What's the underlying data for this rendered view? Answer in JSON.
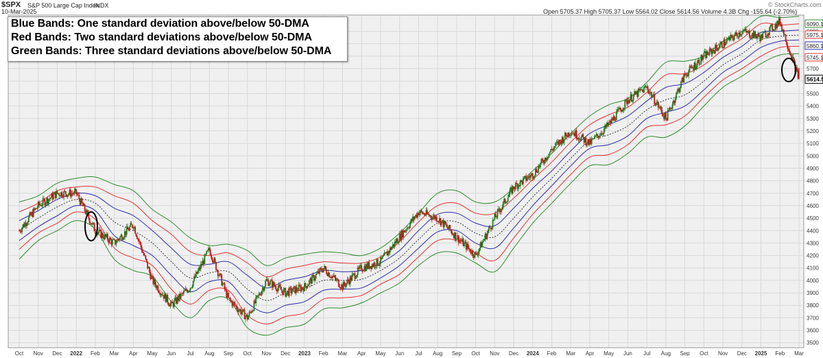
{
  "header": {
    "symbol": "$SPX",
    "name": "S&P 500 Large Cap Index",
    "exchange": "INDX",
    "date": "10-Mar-2025",
    "quote": "Open 5705.37  High 5705.37  Low 5564.02  Close 5614.56  Volume 4.3B  Chg -155.64 (-2.70%)",
    "watermark": "© StockCharts.com"
  },
  "legend": {
    "blue": "Blue Bands: One standard deviation above/below 50-DMA",
    "red": "Red Bands: Two standard deviations above/below 50-DMA",
    "green": "Green Bands: Three standard deviations above/below 50-DMA"
  },
  "price_tags": {
    "g_upper": "6090.12",
    "r_upper": "5975.12",
    "b_upper": "5860.13",
    "r_lower": "5745.13",
    "close": "5614.56"
  },
  "chart_data": {
    "type": "line",
    "title": "$SPX S&P 500 Large Cap Index INDX",
    "x_ticks": [
      "Oct",
      "Nov",
      "Dec",
      "2022",
      "Feb",
      "Mar",
      "Apr",
      "May",
      "Jun",
      "Jul",
      "Aug",
      "Sep",
      "Oct",
      "Nov",
      "Dec",
      "2023",
      "Feb",
      "Mar",
      "Apr",
      "May",
      "Jun",
      "Jul",
      "Aug",
      "Sep",
      "Oct",
      "Nov",
      "Dec",
      "2024",
      "Feb",
      "Mar",
      "Apr",
      "May",
      "Jun",
      "Jul",
      "Aug",
      "Sep",
      "Oct",
      "Nov",
      "Dec",
      "2025",
      "Feb",
      "Mar"
    ],
    "y_ticks": [
      3500,
      3600,
      3700,
      3800,
      3900,
      4000,
      4100,
      4200,
      4300,
      4400,
      4500,
      4600,
      4700,
      4800,
      4900,
      5000,
      5100,
      5200,
      5300,
      5400,
      5500,
      5600,
      5700,
      5800,
      5900,
      6000
    ],
    "ylim": [
      3460,
      6130
    ],
    "grid": true,
    "series": [
      {
        "name": "Price",
        "color": "#1a1a1a",
        "x": [
          "Oct 2021",
          "Nov 2021",
          "Dec 2021",
          "Jan 2022",
          "Feb 2022",
          "Mar 2022",
          "Apr 2022",
          "May 2022",
          "Jun 2022",
          "Jul 2022",
          "Aug 2022",
          "Sep 2022",
          "Oct 2022",
          "Nov 2022",
          "Dec 2022",
          "Jan 2023",
          "Feb 2023",
          "Mar 2023",
          "Apr 2023",
          "May 2023",
          "Jun 2023",
          "Jul 2023",
          "Aug 2023",
          "Sep 2023",
          "Oct 2023",
          "Nov 2023",
          "Dec 2023",
          "Jan 2024",
          "Feb 2024",
          "Mar 2024",
          "Apr 2024",
          "May 2024",
          "Jun 2024",
          "Jul 2024",
          "Aug 2024",
          "Sep 2024",
          "Oct 2024",
          "Nov 2024",
          "Dec 2024",
          "Jan 2025",
          "Feb 2025",
          "Mar 2025"
        ],
        "values": [
          4400,
          4600,
          4700,
          4700,
          4400,
          4300,
          4450,
          4000,
          3800,
          3950,
          4250,
          3850,
          3700,
          4000,
          3900,
          3950,
          4100,
          3950,
          4100,
          4150,
          4350,
          4550,
          4500,
          4350,
          4200,
          4500,
          4750,
          4850,
          5050,
          5200,
          5100,
          5250,
          5450,
          5550,
          5300,
          5650,
          5800,
          5900,
          6000,
          5950,
          6080,
          5614.56
        ]
      },
      {
        "name": "50-DMA",
        "color": "#333333",
        "style": "dotted",
        "values": [
          4400,
          4500,
          4590,
          4650,
          4620,
          4470,
          4400,
          4300,
          4150,
          4020,
          4060,
          4070,
          3930,
          3840,
          3900,
          3930,
          4000,
          4000,
          4010,
          4080,
          4180,
          4330,
          4460,
          4470,
          4380,
          4350,
          4500,
          4670,
          4820,
          4980,
          5120,
          5170,
          5240,
          5370,
          5450,
          5490,
          5600,
          5730,
          5820,
          5930,
          5960,
          5970
        ]
      },
      {
        "name": "Upper 3SD",
        "color": "#2e8b2e",
        "values": [
          4630,
          4680,
          4780,
          4820,
          4830,
          4770,
          4720,
          4570,
          4470,
          4340,
          4280,
          4290,
          4240,
          4120,
          4180,
          4210,
          4230,
          4220,
          4200,
          4260,
          4380,
          4540,
          4700,
          4720,
          4630,
          4630,
          4740,
          4880,
          5020,
          5180,
          5320,
          5410,
          5460,
          5590,
          5750,
          5760,
          5800,
          5920,
          6000,
          6120,
          6110,
          6120
        ]
      },
      {
        "name": "Upper 2SD",
        "color": "#e03030",
        "values": [
          4550,
          4620,
          4720,
          4750,
          4750,
          4680,
          4620,
          4480,
          4370,
          4230,
          4200,
          4220,
          4140,
          4030,
          4090,
          4120,
          4150,
          4140,
          4140,
          4190,
          4310,
          4470,
          4600,
          4620,
          4540,
          4540,
          4660,
          4810,
          4950,
          5110,
          5250,
          5330,
          5390,
          5510,
          5650,
          5660,
          5730,
          5850,
          5940,
          6060,
          6050,
          6060
        ]
      },
      {
        "name": "Upper 1SD",
        "color": "#2a2aa8",
        "values": [
          4480,
          4560,
          4650,
          4700,
          4680,
          4580,
          4520,
          4400,
          4260,
          4130,
          4130,
          4150,
          4040,
          3940,
          4000,
          4030,
          4080,
          4070,
          4080,
          4140,
          4240,
          4400,
          4530,
          4540,
          4460,
          4440,
          4580,
          4740,
          4880,
          5040,
          5180,
          5250,
          5320,
          5440,
          5550,
          5580,
          5670,
          5790,
          5880,
          5990,
          6000,
          6010
        ]
      },
      {
        "name": "Lower 1SD",
        "color": "#2a2aa8",
        "values": [
          4320,
          4430,
          4520,
          4600,
          4560,
          4360,
          4280,
          4200,
          4040,
          3910,
          3990,
          3990,
          3820,
          3740,
          3800,
          3830,
          3920,
          3930,
          3940,
          4020,
          4120,
          4260,
          4390,
          4400,
          4300,
          4260,
          4420,
          4600,
          4760,
          4920,
          5060,
          5090,
          5160,
          5300,
          5350,
          5400,
          5530,
          5670,
          5760,
          5870,
          5920,
          5930
        ]
      },
      {
        "name": "Lower 2SD",
        "color": "#e03030",
        "values": [
          4250,
          4380,
          4460,
          4550,
          4490,
          4260,
          4180,
          4120,
          3930,
          3810,
          3920,
          3920,
          3720,
          3650,
          3710,
          3740,
          3850,
          3860,
          3880,
          3970,
          4050,
          4190,
          4320,
          4320,
          4220,
          4160,
          4340,
          4530,
          4690,
          4850,
          4990,
          5010,
          5090,
          5230,
          5250,
          5320,
          5470,
          5610,
          5700,
          5800,
          5870,
          5880
        ]
      },
      {
        "name": "Lower 3SD",
        "color": "#2e8b2e",
        "values": [
          4170,
          4320,
          4400,
          4480,
          4410,
          4170,
          4080,
          4030,
          3830,
          3700,
          3840,
          3850,
          3620,
          3560,
          3620,
          3650,
          3770,
          3780,
          3820,
          3900,
          3980,
          4120,
          4220,
          4220,
          4140,
          4070,
          4260,
          4460,
          4620,
          4780,
          4920,
          4930,
          5020,
          5150,
          5150,
          5240,
          5400,
          5550,
          5640,
          5740,
          5810,
          5820
        ]
      }
    ],
    "annotations": [
      "Circle: Feb 2022 low below 3SD band",
      "Circle: Mar 2025 close below 3SD band"
    ]
  }
}
